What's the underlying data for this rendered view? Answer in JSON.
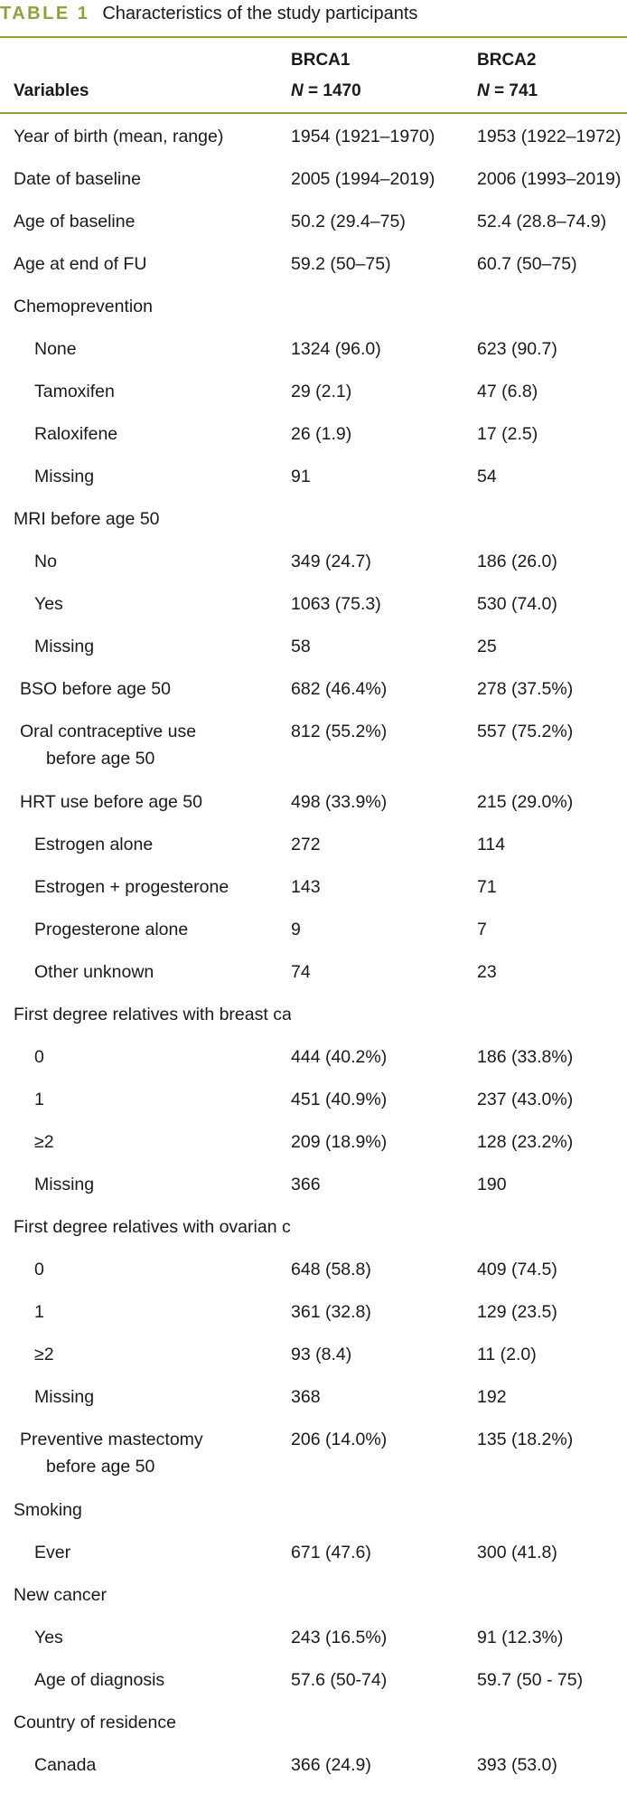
{
  "caption": {
    "label": "TABLE 1",
    "text": "Characteristics of the study participants"
  },
  "header": {
    "variables": "Variables",
    "brca1": {
      "name": "BRCA1",
      "n_label": "N",
      "n_value": "= 1470"
    },
    "brca2": {
      "name": "BRCA2",
      "n_label": "N",
      "n_value": "= 741"
    }
  },
  "rows": [
    {
      "label": "Year of birth (mean, range)",
      "level": 0,
      "brca1": "1954 (1921–1970)",
      "brca2": "1953 (1922–1972)"
    },
    {
      "label": "Date of baseline",
      "level": 0,
      "brca1": "2005 (1994–2019)",
      "brca2": "2006 (1993–2019)"
    },
    {
      "label": "Age of baseline",
      "level": 0,
      "brca1": "50.2 (29.4–75)",
      "brca2": "52.4 (28.8–74.9)"
    },
    {
      "label": "Age at end of FU",
      "level": 0,
      "brca1": "59.2 (50–75)",
      "brca2": "60.7 (50–75)"
    },
    {
      "label": "Chemoprevention",
      "level": 0,
      "brca1": "",
      "brca2": ""
    },
    {
      "label": "None",
      "level": 1,
      "brca1": "1324 (96.0)",
      "brca2": "623 (90.7)"
    },
    {
      "label": "Tamoxifen",
      "level": 1,
      "brca1": "29 (2.1)",
      "brca2": "47 (6.8)"
    },
    {
      "label": "Raloxifene",
      "level": 1,
      "brca1": "26 (1.9)",
      "brca2": "17 (2.5)"
    },
    {
      "label": "Missing",
      "level": 1,
      "brca1": "91",
      "brca2": "54"
    },
    {
      "label": "MRI before age 50",
      "level": 0,
      "brca1": "",
      "brca2": ""
    },
    {
      "label": "No",
      "level": 1,
      "brca1": "349 (24.7)",
      "brca2": "186 (26.0)"
    },
    {
      "label": "Yes",
      "level": 1,
      "brca1": "1063 (75.3)",
      "brca2": "530 (74.0)"
    },
    {
      "label": "Missing",
      "level": 1,
      "brca1": "58",
      "brca2": "25"
    },
    {
      "label": "BSO before age 50",
      "level": 0.5,
      "brca1": "682 (46.4%)",
      "brca2": "278 (37.5%)"
    },
    {
      "label": "Oral contraceptive use",
      "label2": "before age 50",
      "level": 0.5,
      "brca1": "812 (55.2%)",
      "brca2": "557 (75.2%)"
    },
    {
      "label": "HRT use before age 50",
      "level": 0.5,
      "brca1": "498 (33.9%)",
      "brca2": "215 (29.0%)"
    },
    {
      "label": "Estrogen alone",
      "level": 1,
      "brca1": "272",
      "brca2": "114"
    },
    {
      "label": "Estrogen + progesterone",
      "level": 1,
      "brca1": "143",
      "brca2": "71"
    },
    {
      "label": "Progesterone alone",
      "level": 1,
      "brca1": "9",
      "brca2": "7"
    },
    {
      "label": "Other unknown",
      "level": 1,
      "brca1": "74",
      "brca2": "23"
    },
    {
      "label": "First degree relatives with breast cancer",
      "level": 0,
      "brca1": "",
      "brca2": ""
    },
    {
      "label": "0",
      "level": 1,
      "brca1": "444 (40.2%)",
      "brca2": "186 (33.8%)"
    },
    {
      "label": "1",
      "level": 1,
      "brca1": "451 (40.9%)",
      "brca2": "237 (43.0%)"
    },
    {
      "label": "≥2",
      "level": 1,
      "brca1": "209 (18.9%)",
      "brca2": "128 (23.2%)"
    },
    {
      "label": "Missing",
      "level": 1,
      "brca1": "366",
      "brca2": "190"
    },
    {
      "label": "First degree relatives with ovarian cancer",
      "level": 0,
      "brca1": "",
      "brca2": ""
    },
    {
      "label": "0",
      "level": 1,
      "brca1": "648 (58.8)",
      "brca2": "409 (74.5)"
    },
    {
      "label": "1",
      "level": 1,
      "brca1": "361 (32.8)",
      "brca2": "129 (23.5)"
    },
    {
      "label": "≥2",
      "level": 1,
      "brca1": "93 (8.4)",
      "brca2": "11 (2.0)"
    },
    {
      "label": "Missing",
      "level": 1,
      "brca1": "368",
      "brca2": "192"
    },
    {
      "label": "Preventive mastectomy",
      "label2": "before age 50",
      "level": 0.5,
      "brca1": "206 (14.0%)",
      "brca2": "135 (18.2%)"
    },
    {
      "label": "Smoking",
      "level": 0,
      "brca1": "",
      "brca2": ""
    },
    {
      "label": "Ever",
      "level": 1,
      "brca1": "671 (47.6)",
      "brca2": "300 (41.8)"
    },
    {
      "label": "New cancer",
      "level": 0,
      "brca1": "",
      "brca2": ""
    },
    {
      "label": "Yes",
      "level": 1,
      "brca1": "243 (16.5%)",
      "brca2": "91 (12.3%)"
    },
    {
      "label": "Age of diagnosis",
      "level": 1,
      "brca1": "57.6 (50-74)",
      "brca2": "59.7 (50 - 75)"
    },
    {
      "label": "Country of residence",
      "level": 0,
      "brca1": "",
      "brca2": ""
    },
    {
      "label": "Canada",
      "level": 1,
      "brca1": "366 (24.9)",
      "brca2": "393 (53.0)"
    }
  ]
}
